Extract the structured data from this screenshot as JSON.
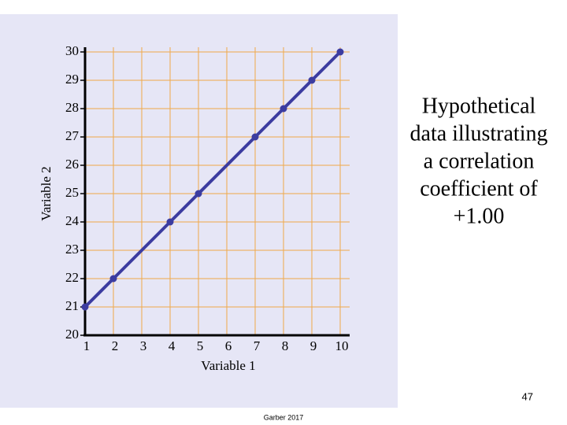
{
  "chart_data": {
    "type": "line",
    "x_label": "Variable 1",
    "y_label": "Variable 2",
    "annotation": [
      "Hypothetical",
      "data illustrating",
      "a correlation",
      "coefficient of",
      "+1.00"
    ],
    "x": [
      1,
      2,
      4,
      5,
      7,
      8,
      9,
      10
    ],
    "series": [
      {
        "name": "Variable 2",
        "color": "#3c3ca0",
        "values": [
          21,
          22,
          24,
          25,
          27,
          28,
          29,
          30
        ]
      }
    ],
    "xlim": [
      1,
      10
    ],
    "ylim": [
      20,
      30
    ],
    "xticks": [
      1,
      2,
      3,
      4,
      5,
      6,
      7,
      8,
      9,
      10
    ],
    "yticks": [
      20,
      21,
      22,
      23,
      24,
      25,
      26,
      27,
      28,
      29,
      30
    ],
    "grid": true,
    "grid_color": "#f0a848",
    "background": "#e6e6f6"
  },
  "slide": {
    "number": 47,
    "footer": "Garber 2017"
  }
}
